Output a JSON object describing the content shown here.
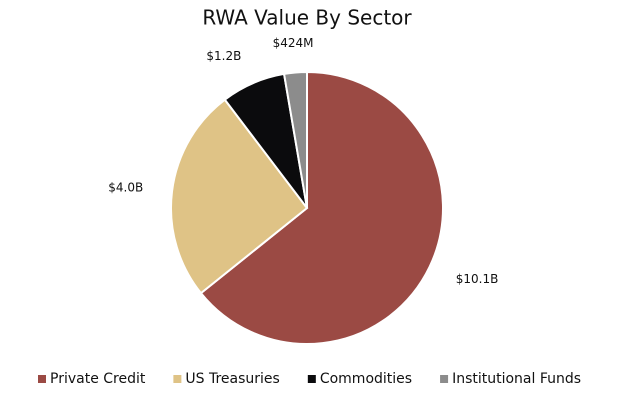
{
  "chart_data": {
    "type": "pie",
    "title": "RWA Value By Sector",
    "categories": [
      "Private Credit",
      "US Treasuries",
      "Commodities",
      "Institutional Funds"
    ],
    "values": [
      10100000000,
      4000000000,
      1200000000,
      424000000
    ],
    "value_labels": [
      "$10.1B",
      "$4.0B",
      "$1.2B",
      "$424M"
    ],
    "colors": [
      "#9b4a44",
      "#dfc386",
      "#0b0b0d",
      "#8c8c8c"
    ],
    "legend": "bottom"
  }
}
